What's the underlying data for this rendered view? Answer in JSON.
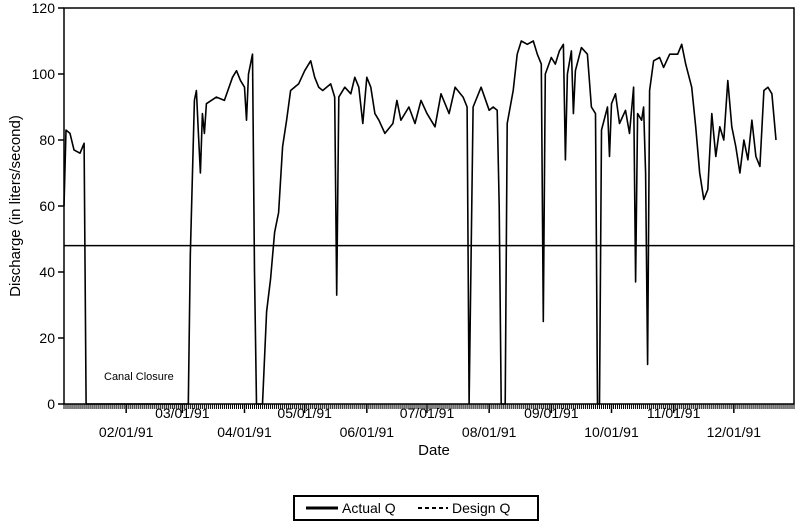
{
  "chart_data": {
    "type": "line",
    "title": "",
    "xlabel": "Date",
    "ylabel": "Discharge (in liters/second)",
    "ylim": [
      0,
      120
    ],
    "yticks": [
      0,
      20,
      40,
      60,
      80,
      100,
      120
    ],
    "xlim": [
      "1991-01-01",
      "1991-12-31"
    ],
    "xticks": [
      {
        "date": "1991-02-01",
        "label": "02/01/91"
      },
      {
        "date": "1991-03-01",
        "label": "03/01/91"
      },
      {
        "date": "1991-04-01",
        "label": "04/01/91"
      },
      {
        "date": "1991-05-01",
        "label": "05/01/91"
      },
      {
        "date": "1991-06-01",
        "label": "06/01/91"
      },
      {
        "date": "1991-07-01",
        "label": "07/01/91"
      },
      {
        "date": "1991-08-01",
        "label": "08/01/91"
      },
      {
        "date": "1991-09-01",
        "label": "09/01/91"
      },
      {
        "date": "1991-10-01",
        "label": "10/01/91"
      },
      {
        "date": "1991-11-01",
        "label": "11/01/91"
      },
      {
        "date": "1991-12-01",
        "label": "12/01/91"
      }
    ],
    "grid": false,
    "legend_position": "bottom-center",
    "annotation": {
      "text": "Canal Closure",
      "date": "1991-01-20",
      "value": 6
    },
    "series": [
      {
        "name": "Actual Q",
        "style": "solid",
        "color": "#000000",
        "points": [
          [
            "1991-01-01",
            60
          ],
          [
            "1991-01-02",
            83
          ],
          [
            "1991-01-04",
            82
          ],
          [
            "1991-01-06",
            77
          ],
          [
            "1991-01-09",
            76
          ],
          [
            "1991-01-11",
            79
          ],
          [
            "1991-01-12",
            0
          ],
          [
            "1991-03-04",
            0
          ],
          [
            "1991-03-05",
            45
          ],
          [
            "1991-03-07",
            92
          ],
          [
            "1991-03-08",
            95
          ],
          [
            "1991-03-09",
            82
          ],
          [
            "1991-03-10",
            70
          ],
          [
            "1991-03-11",
            88
          ],
          [
            "1991-03-12",
            82
          ],
          [
            "1991-03-13",
            91
          ],
          [
            "1991-03-18",
            93
          ],
          [
            "1991-03-22",
            92
          ],
          [
            "1991-03-26",
            99
          ],
          [
            "1991-03-28",
            101
          ],
          [
            "1991-03-30",
            98
          ],
          [
            "1991-04-01",
            96
          ],
          [
            "1991-04-02",
            86
          ],
          [
            "1991-04-03",
            100
          ],
          [
            "1991-04-05",
            106
          ],
          [
            "1991-04-06",
            40
          ],
          [
            "1991-04-07",
            0
          ],
          [
            "1991-04-10",
            0
          ],
          [
            "1991-04-12",
            28
          ],
          [
            "1991-04-14",
            38
          ],
          [
            "1991-04-16",
            52
          ],
          [
            "1991-04-18",
            58
          ],
          [
            "1991-04-20",
            78
          ],
          [
            "1991-04-22",
            86
          ],
          [
            "1991-04-24",
            95
          ],
          [
            "1991-04-28",
            97
          ],
          [
            "1991-05-01",
            101
          ],
          [
            "1991-05-04",
            104
          ],
          [
            "1991-05-06",
            99
          ],
          [
            "1991-05-08",
            96
          ],
          [
            "1991-05-10",
            95
          ],
          [
            "1991-05-14",
            97
          ],
          [
            "1991-05-16",
            93
          ],
          [
            "1991-05-17",
            33
          ],
          [
            "1991-05-18",
            93
          ],
          [
            "1991-05-21",
            96
          ],
          [
            "1991-05-24",
            94
          ],
          [
            "1991-05-26",
            99
          ],
          [
            "1991-05-28",
            96
          ],
          [
            "1991-05-30",
            85
          ],
          [
            "1991-06-01",
            99
          ],
          [
            "1991-06-03",
            96
          ],
          [
            "1991-06-05",
            88
          ],
          [
            "1991-06-07",
            86
          ],
          [
            "1991-06-10",
            82
          ],
          [
            "1991-06-14",
            85
          ],
          [
            "1991-06-16",
            92
          ],
          [
            "1991-06-18",
            86
          ],
          [
            "1991-06-22",
            90
          ],
          [
            "1991-06-25",
            85
          ],
          [
            "1991-06-28",
            92
          ],
          [
            "1991-07-01",
            88
          ],
          [
            "1991-07-05",
            84
          ],
          [
            "1991-07-08",
            94
          ],
          [
            "1991-07-12",
            88
          ],
          [
            "1991-07-15",
            96
          ],
          [
            "1991-07-19",
            93
          ],
          [
            "1991-07-21",
            90
          ],
          [
            "1991-07-22",
            0
          ],
          [
            "1991-07-24",
            90
          ],
          [
            "1991-07-28",
            96
          ],
          [
            "1991-08-01",
            89
          ],
          [
            "1991-08-03",
            90
          ],
          [
            "1991-08-05",
            89
          ],
          [
            "1991-08-06",
            60
          ],
          [
            "1991-08-07",
            0
          ],
          [
            "1991-08-09",
            0
          ],
          [
            "1991-08-10",
            85
          ],
          [
            "1991-08-13",
            95
          ],
          [
            "1991-08-15",
            106
          ],
          [
            "1991-08-17",
            110
          ],
          [
            "1991-08-20",
            109
          ],
          [
            "1991-08-23",
            110
          ],
          [
            "1991-08-25",
            106
          ],
          [
            "1991-08-27",
            103
          ],
          [
            "1991-08-28",
            25
          ],
          [
            "1991-08-29",
            100
          ],
          [
            "1991-09-01",
            105
          ],
          [
            "1991-09-03",
            103
          ],
          [
            "1991-09-05",
            107
          ],
          [
            "1991-09-07",
            109
          ],
          [
            "1991-09-08",
            74
          ],
          [
            "1991-09-09",
            100
          ],
          [
            "1991-09-11",
            107
          ],
          [
            "1991-09-12",
            88
          ],
          [
            "1991-09-13",
            101
          ],
          [
            "1991-09-16",
            108
          ],
          [
            "1991-09-19",
            106
          ],
          [
            "1991-09-21",
            90
          ],
          [
            "1991-09-23",
            88
          ],
          [
            "1991-09-24",
            0
          ],
          [
            "1991-09-25",
            0
          ],
          [
            "1991-09-26",
            83
          ],
          [
            "1991-09-29",
            90
          ],
          [
            "1991-09-30",
            75
          ],
          [
            "1991-10-01",
            91
          ],
          [
            "1991-10-03",
            94
          ],
          [
            "1991-10-05",
            85
          ],
          [
            "1991-10-08",
            89
          ],
          [
            "1991-10-10",
            82
          ],
          [
            "1991-10-12",
            96
          ],
          [
            "1991-10-13",
            37
          ],
          [
            "1991-10-14",
            88
          ],
          [
            "1991-10-16",
            86
          ],
          [
            "1991-10-17",
            90
          ],
          [
            "1991-10-18",
            70
          ],
          [
            "1991-10-19",
            12
          ],
          [
            "1991-10-20",
            95
          ],
          [
            "1991-10-22",
            104
          ],
          [
            "1991-10-25",
            105
          ],
          [
            "1991-10-27",
            102
          ],
          [
            "1991-10-30",
            106
          ],
          [
            "1991-11-03",
            106
          ],
          [
            "1991-11-05",
            109
          ],
          [
            "1991-11-07",
            103
          ],
          [
            "1991-11-10",
            96
          ],
          [
            "1991-11-12",
            84
          ],
          [
            "1991-11-14",
            70
          ],
          [
            "1991-11-16",
            62
          ],
          [
            "1991-11-18",
            65
          ],
          [
            "1991-11-20",
            88
          ],
          [
            "1991-11-22",
            75
          ],
          [
            "1991-11-24",
            84
          ],
          [
            "1991-11-26",
            80
          ],
          [
            "1991-11-28",
            98
          ],
          [
            "1991-11-30",
            84
          ],
          [
            "1991-12-02",
            78
          ],
          [
            "1991-12-04",
            70
          ],
          [
            "1991-12-06",
            80
          ],
          [
            "1991-12-08",
            74
          ],
          [
            "1991-12-10",
            86
          ],
          [
            "1991-12-12",
            75
          ],
          [
            "1991-12-14",
            72
          ],
          [
            "1991-12-16",
            95
          ],
          [
            "1991-12-18",
            96
          ],
          [
            "1991-12-20",
            94
          ],
          [
            "1991-12-22",
            80
          ]
        ]
      },
      {
        "name": "Design Q",
        "style": "dashed",
        "color": "#000000",
        "points": [
          [
            "1991-01-01",
            48
          ],
          [
            "1991-12-31",
            48
          ]
        ]
      }
    ]
  }
}
